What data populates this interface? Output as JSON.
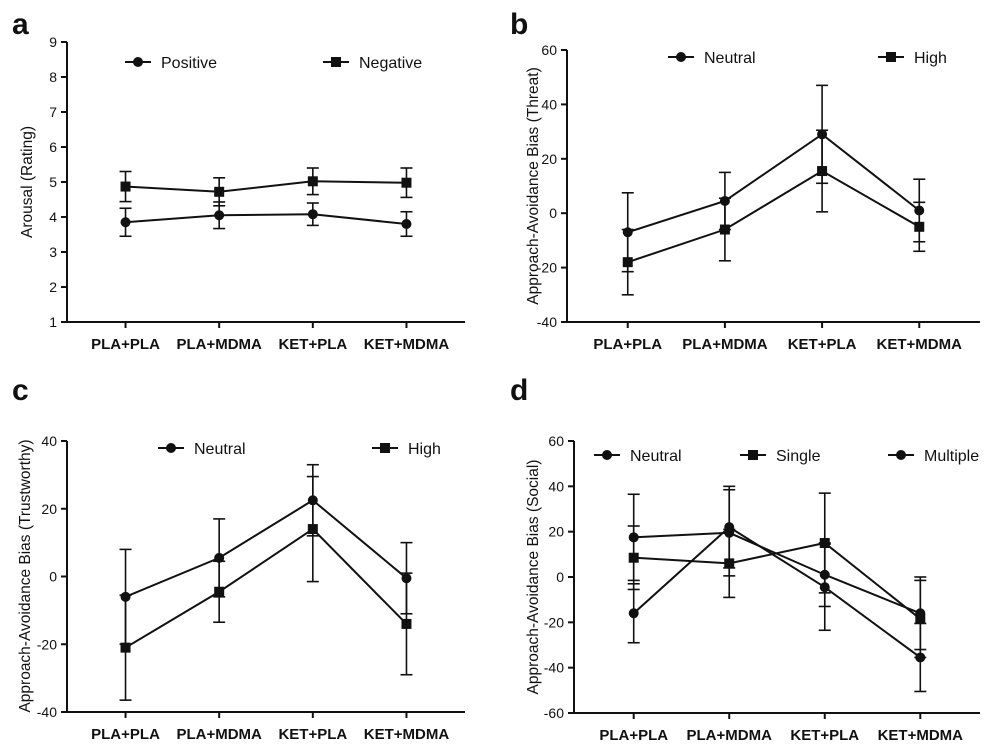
{
  "figure": {
    "panels": [
      "a",
      "b",
      "c",
      "d"
    ]
  },
  "chart_data": [
    {
      "panel": "a",
      "type": "line",
      "categories": [
        "PLA+PLA",
        "PLA+MDMA",
        "KET+PLA",
        "KET+MDMA"
      ],
      "ylabel": "Arousal (Rating)",
      "xlabel": "",
      "ylim": [
        1,
        9
      ],
      "yticks": [
        1,
        2,
        3,
        4,
        5,
        6,
        7,
        8,
        9
      ],
      "legend_position": "top",
      "grid": false,
      "series": [
        {
          "name": "Positive",
          "marker": "circle",
          "values": [
            3.85,
            4.05,
            4.08,
            3.8
          ],
          "err": [
            0.4,
            0.38,
            0.32,
            0.35
          ]
        },
        {
          "name": "Negative",
          "marker": "square",
          "values": [
            4.87,
            4.72,
            5.02,
            4.98
          ],
          "err": [
            0.43,
            0.4,
            0.38,
            0.42
          ]
        }
      ]
    },
    {
      "panel": "b",
      "type": "line",
      "categories": [
        "PLA+PLA",
        "PLA+MDMA",
        "KET+PLA",
        "KET+MDMA"
      ],
      "ylabel": "Approach-Avoidance Bias (Threat)",
      "xlabel": "",
      "ylim": [
        -40,
        60
      ],
      "yticks": [
        -40,
        -20,
        0,
        20,
        40,
        60
      ],
      "legend_position": "top",
      "grid": false,
      "series": [
        {
          "name": "Neutral",
          "marker": "circle",
          "values": [
            -7,
            4.5,
            29,
            1
          ],
          "err": [
            14.5,
            10.5,
            18,
            11.5
          ]
        },
        {
          "name": "High",
          "marker": "square",
          "values": [
            -18,
            -6,
            15.5,
            -5
          ],
          "err": [
            12,
            11.5,
            15,
            9
          ]
        }
      ]
    },
    {
      "panel": "c",
      "type": "line",
      "categories": [
        "PLA+PLA",
        "PLA+MDMA",
        "KET+PLA",
        "KET+MDMA"
      ],
      "ylabel": "Approach-Avoidance Bias (Trustworthy)",
      "xlabel": "",
      "ylim": [
        -40,
        40
      ],
      "yticks": [
        -40,
        -20,
        0,
        20,
        40
      ],
      "legend_position": "top",
      "grid": false,
      "series": [
        {
          "name": "Neutral",
          "marker": "circle",
          "values": [
            -6,
            5.5,
            22.5,
            -0.5
          ],
          "err": [
            14,
            11.5,
            10.5,
            10.5
          ]
        },
        {
          "name": "High",
          "marker": "square",
          "values": [
            -21,
            -4.5,
            14,
            -14
          ],
          "err": [
            15.5,
            9,
            15.5,
            15
          ]
        }
      ]
    },
    {
      "panel": "d",
      "type": "line",
      "categories": [
        "PLA+PLA",
        "PLA+MDMA",
        "KET+PLA",
        "KET+MDMA"
      ],
      "ylabel": "Approach-Avoidance Bias (Social)",
      "xlabel": "",
      "ylim": [
        -60,
        60
      ],
      "yticks": [
        -60,
        -40,
        -20,
        0,
        20,
        40,
        60
      ],
      "legend_position": "top",
      "grid": false,
      "series": [
        {
          "name": "Neutral",
          "marker": "circle",
          "values": [
            17.5,
            19.5,
            1,
            -16
          ],
          "err": [
            19,
            19,
            14,
            16
          ]
        },
        {
          "name": "Single",
          "marker": "square",
          "values": [
            8.5,
            6,
            15,
            -18.5
          ],
          "err": [
            14,
            15,
            22,
            17
          ]
        },
        {
          "name": "Multiple",
          "marker": "circle",
          "values": [
            -16,
            22,
            -4.5,
            -35.5
          ],
          "err": [
            13,
            18,
            19,
            15
          ]
        }
      ]
    }
  ]
}
